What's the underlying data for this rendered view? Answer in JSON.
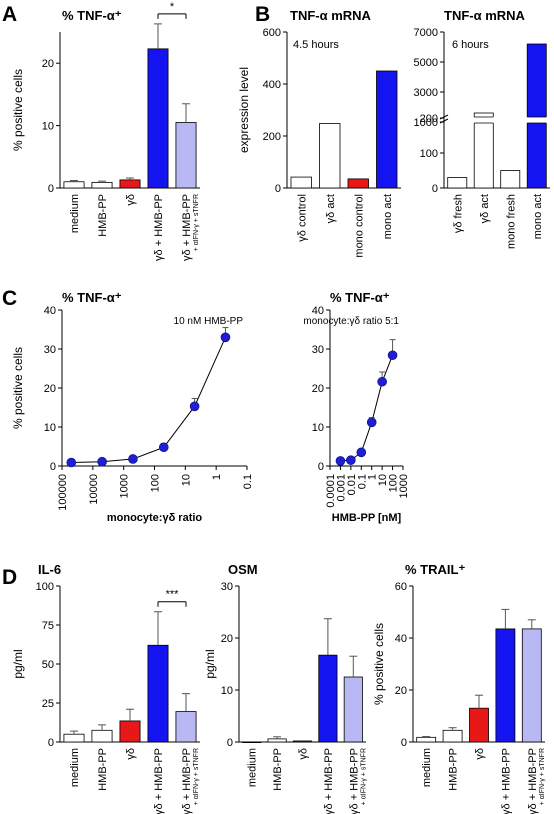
{
  "colors": {
    "white": "#ffffff",
    "red": "#e81818",
    "blue": "#1414f0",
    "lavender": "#b8b8f4",
    "axis": "#000000",
    "errorbar": "#555555",
    "marker": "#1e1ed2"
  },
  "panel_letters": {
    "A": "A",
    "B": "B",
    "C": "C",
    "D": "D"
  },
  "chart_data": [
    {
      "id": "A",
      "type": "bar",
      "title": "% TNF-α⁺",
      "ylabel": "% positive cells",
      "ylim": [
        0,
        25
      ],
      "yticks": [
        "0",
        "10",
        "20"
      ],
      "categories": [
        "medium",
        "HMB-PP",
        "γδ",
        "γδ + HMB-PP",
        "γδ + HMB-PP"
      ],
      "category_subscripts": [
        "",
        "",
        "",
        "",
        "+ αIFN-γ + sTNFR"
      ],
      "values": [
        1.0,
        0.9,
        1.3,
        22.3,
        10.5
      ],
      "errors": [
        0.2,
        0.2,
        0.3,
        4.0,
        3.0
      ],
      "bar_colors": [
        "white",
        "white",
        "red",
        "blue",
        "lavender"
      ],
      "significance": {
        "from": 3,
        "to": 4,
        "label": "*"
      }
    },
    {
      "id": "B1",
      "type": "bar",
      "title": "TNF-α mRNA",
      "ylabel": "expression level",
      "annotation": "4.5 hours",
      "ylim": [
        0,
        600
      ],
      "yticks": [
        "0",
        "200",
        "400",
        "600"
      ],
      "categories": [
        "γδ control",
        "γδ act",
        "mono control",
        "mono act"
      ],
      "values": [
        42,
        248,
        35,
        450
      ],
      "bar_colors": [
        "white",
        "white",
        "red",
        "blue"
      ]
    },
    {
      "id": "B2",
      "type": "bar",
      "title": "TNF-α mRNA",
      "annotation": "6 hours",
      "axis_break": true,
      "yticks_low": [
        "0",
        "100",
        "200"
      ],
      "yticks_high": [
        "1000",
        "3000",
        "5000",
        "7000"
      ],
      "categories": [
        "γδ fresh",
        "γδ act",
        "mono fresh",
        "mono act"
      ],
      "values": [
        30,
        1600,
        50,
        6200
      ],
      "bar_colors": [
        "white",
        "white",
        "white",
        "blue"
      ]
    },
    {
      "id": "C1",
      "type": "line",
      "title": "% TNF-α⁺",
      "ylabel": "% positive cells",
      "xlabel": "monocyte:γδ ratio",
      "annotation": "10 nM HMB-PP",
      "xscale": "log",
      "xreversed": true,
      "xlim": [
        100000,
        0.1
      ],
      "ylim": [
        0,
        40
      ],
      "xticks": [
        "100000",
        "10000",
        "1000",
        "100",
        "10",
        "1",
        "0.1"
      ],
      "yticks": [
        "0",
        "10",
        "20",
        "30",
        "40"
      ],
      "x": [
        50000,
        5000,
        500,
        50,
        5,
        0.5
      ],
      "y": [
        0.9,
        1.1,
        1.8,
        4.8,
        15.3,
        33.0
      ],
      "errors": [
        0.3,
        0.3,
        0.4,
        1.0,
        2.0,
        2.5
      ]
    },
    {
      "id": "C2",
      "type": "line",
      "title": "% TNF-α⁺",
      "xlabel": "HMB-PP [nM]",
      "annotation": "monocyte:γδ ratio 5:1",
      "xscale": "log",
      "xlim": [
        0.0001,
        1000
      ],
      "ylim": [
        0,
        40
      ],
      "xticks": [
        "0.0001",
        "0.001",
        "0.01",
        "0.1",
        "1",
        "10",
        "100",
        "1000"
      ],
      "yticks": [
        "0",
        "10",
        "20",
        "30",
        "40"
      ],
      "x": [
        0.001,
        0.01,
        0.1,
        1,
        10,
        100
      ],
      "y": [
        1.3,
        1.5,
        3.5,
        11.2,
        21.6,
        28.4
      ],
      "errors": [
        0.3,
        0.3,
        0.5,
        1.2,
        2.5,
        4.0
      ]
    },
    {
      "id": "D1",
      "type": "bar",
      "title": "IL-6",
      "ylabel": "pg/ml",
      "ylim": [
        0,
        100
      ],
      "yticks": [
        "0",
        "25",
        "50",
        "75",
        "100"
      ],
      "categories": [
        "medium",
        "HMB-PP",
        "γδ",
        "γδ + HMB-PP",
        "γδ + HMB-PP"
      ],
      "category_subscripts": [
        "",
        "",
        "",
        "",
        "+ αIFN-γ + sTNFR"
      ],
      "values": [
        5,
        7.5,
        13.5,
        62,
        19.5
      ],
      "errors": [
        2,
        3.5,
        7.5,
        21.5,
        11.5
      ],
      "bar_colors": [
        "white",
        "white",
        "red",
        "blue",
        "lavender"
      ],
      "significance": {
        "from": 3,
        "to": 4,
        "label": "***"
      }
    },
    {
      "id": "D2",
      "type": "bar",
      "title": "OSM",
      "ylabel": "pg/ml",
      "ylim": [
        0,
        30
      ],
      "yticks": [
        "0",
        "10",
        "20",
        "30"
      ],
      "categories": [
        "medium",
        "HMB-PP",
        "γδ",
        "γδ + HMB-PP",
        "γδ + HMB-PP"
      ],
      "category_subscripts": [
        "",
        "",
        "",
        "",
        "+ αIFN-γ + sTNFR"
      ],
      "values": [
        0,
        0.6,
        0.2,
        16.7,
        12.5
      ],
      "errors": [
        0,
        0.4,
        0,
        7.0,
        4.0
      ],
      "bar_colors": [
        "white",
        "white",
        "red",
        "blue",
        "lavender"
      ]
    },
    {
      "id": "D3",
      "type": "bar",
      "title": "% TRAIL⁺",
      "ylabel": "% positive cells",
      "ylim": [
        0,
        60
      ],
      "yticks": [
        "0",
        "20",
        "40",
        "60"
      ],
      "categories": [
        "medium",
        "HMB-PP",
        "γδ",
        "γδ + HMB-PP",
        "γδ + HMB-PP"
      ],
      "category_subscripts": [
        "",
        "",
        "",
        "",
        "+ αIFN-γ + sTNFR"
      ],
      "values": [
        1.8,
        4.5,
        13,
        43.5,
        43.5
      ],
      "errors": [
        0.3,
        1.0,
        5.0,
        7.5,
        3.5
      ],
      "bar_colors": [
        "white",
        "white",
        "red",
        "blue",
        "lavender"
      ]
    }
  ]
}
